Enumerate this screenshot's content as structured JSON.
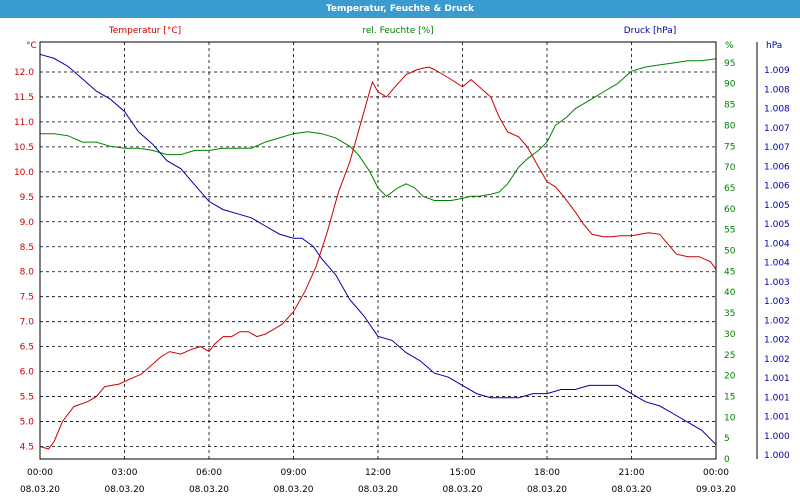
{
  "window": {
    "title": "Temperatur, Feuchte & Druck"
  },
  "colors": {
    "titlebar": "#3a9bd0",
    "temperature": "#cc0000",
    "humidity": "#008000",
    "pressure": "#0000aa",
    "grid": "#000000"
  },
  "legend": {
    "temperature": "Temperatur [°C]",
    "humidity": "rel. Feuchte [%]",
    "pressure": "Druck [hPa]"
  },
  "axes": {
    "left_unit": "°C",
    "right1_unit": "%",
    "right2_unit": "hPa"
  },
  "chart_data": {
    "type": "line",
    "title": "Temperatur, Feuchte & Druck",
    "x_unit": "hours since 08.03.20 00:00",
    "x_ticks": [
      {
        "time": "00:00",
        "date": "08.03.20"
      },
      {
        "time": "03:00",
        "date": "08.03.20"
      },
      {
        "time": "06:00",
        "date": "08.03.20"
      },
      {
        "time": "09:00",
        "date": "08.03.20"
      },
      {
        "time": "12:00",
        "date": "08.03.20"
      },
      {
        "time": "15:00",
        "date": "08.03.20"
      },
      {
        "time": "18:00",
        "date": "08.03.20"
      },
      {
        "time": "21:00",
        "date": "08.03.20"
      },
      {
        "time": "00:00",
        "date": "09.03.20"
      }
    ],
    "xlim": [
      0,
      24
    ],
    "temperature_axis": {
      "ylim": [
        4.25,
        12.6
      ],
      "ticks": [
        "4.5",
        "5.0",
        "5.5",
        "6.0",
        "6.5",
        "7.0",
        "7.5",
        "8.0",
        "8.5",
        "9.0",
        "9.5",
        "10.0",
        "10.5",
        "11.0",
        "11.5",
        "12.0"
      ]
    },
    "humidity_axis": {
      "ylim": [
        0,
        100
      ],
      "ticks": [
        "0",
        "5",
        "10",
        "15",
        "20",
        "25",
        "30",
        "35",
        "40",
        "45",
        "50",
        "55",
        "60",
        "65",
        "70",
        "75",
        "80",
        "85",
        "90",
        "95",
        "%"
      ]
    },
    "pressure_axis": {
      "ylim": [
        0.9995,
        1.0097
      ],
      "ticks": [
        "1.000",
        "1.000",
        "1.001",
        "1.001",
        "1.001",
        "1.002",
        "1.002",
        "1.002",
        "1.003",
        "1.003",
        "1.004",
        "1.004",
        "1.005",
        "1.005",
        "1.006",
        "1.006",
        "1.007",
        "1.007",
        "1.008",
        "1.008",
        "1.009"
      ]
    },
    "grid": true,
    "series": [
      {
        "name": "Temperatur [°C]",
        "axis": "temperature",
        "x": [
          0,
          0.3,
          0.5,
          0.8,
          1.2,
          1.7,
          2.0,
          2.3,
          2.8,
          3.2,
          3.6,
          4.0,
          4.3,
          4.6,
          5.0,
          5.4,
          5.7,
          6.0,
          6.2,
          6.5,
          6.8,
          7.1,
          7.4,
          7.7,
          8.0,
          8.3,
          8.6,
          9.0,
          9.4,
          9.8,
          10.2,
          10.6,
          11.0,
          11.3,
          11.6,
          11.8,
          12.0,
          12.3,
          12.6,
          13.0,
          13.4,
          13.8,
          14.0,
          14.3,
          14.6,
          15.0,
          15.3,
          15.6,
          16.0,
          16.3,
          16.6,
          17.0,
          17.3,
          17.7,
          18.0,
          18.3,
          18.6,
          19.0,
          19.3,
          19.6,
          20.0,
          20.3,
          20.6,
          21.0,
          21.3,
          21.6,
          22.0,
          22.3,
          22.6,
          23.0,
          23.4,
          23.8,
          24.0
        ],
        "values": [
          4.5,
          4.45,
          4.6,
          5.0,
          5.3,
          5.4,
          5.5,
          5.7,
          5.75,
          5.85,
          5.95,
          6.15,
          6.3,
          6.4,
          6.35,
          6.45,
          6.5,
          6.4,
          6.55,
          6.7,
          6.7,
          6.8,
          6.8,
          6.7,
          6.75,
          6.85,
          6.95,
          7.2,
          7.6,
          8.1,
          8.8,
          9.6,
          10.2,
          10.8,
          11.4,
          11.8,
          11.6,
          11.5,
          11.7,
          11.95,
          12.05,
          12.1,
          12.05,
          11.95,
          11.85,
          11.7,
          11.85,
          11.7,
          11.5,
          11.1,
          10.8,
          10.7,
          10.5,
          10.1,
          9.8,
          9.7,
          9.5,
          9.2,
          8.95,
          8.75,
          8.7,
          8.7,
          8.72,
          8.72,
          8.75,
          8.78,
          8.75,
          8.55,
          8.35,
          8.3,
          8.3,
          8.2,
          8.05
        ]
      },
      {
        "name": "rel. Feuchte [%]",
        "axis": "humidity",
        "x": [
          0,
          0.5,
          1.0,
          1.5,
          2.0,
          2.5,
          3.0,
          3.5,
          4.0,
          4.5,
          5.0,
          5.5,
          6.0,
          6.5,
          7.0,
          7.5,
          8.0,
          8.5,
          9.0,
          9.5,
          10.0,
          10.5,
          11.0,
          11.3,
          11.7,
          12.0,
          12.3,
          12.7,
          13.0,
          13.3,
          13.6,
          14.0,
          14.3,
          14.6,
          15.0,
          15.3,
          15.6,
          16.0,
          16.3,
          16.6,
          17.0,
          17.3,
          17.7,
          18.0,
          18.3,
          18.7,
          19.0,
          19.5,
          20.0,
          20.5,
          21.0,
          21.5,
          22.0,
          22.5,
          23.0,
          23.5,
          24.0
        ],
        "values": [
          78,
          78,
          77.5,
          76,
          76,
          75,
          74.5,
          74.5,
          74,
          73,
          73,
          74,
          74,
          74.5,
          74.5,
          74.5,
          76,
          77,
          78,
          78.5,
          78,
          77,
          75,
          73,
          69,
          65,
          63,
          65,
          66,
          65,
          63,
          62,
          62,
          62,
          62.5,
          63,
          63,
          63.5,
          64,
          66,
          70,
          72,
          74,
          76,
          80,
          82,
          84,
          86,
          88,
          90,
          93,
          94,
          94.5,
          95,
          95.5,
          95.5,
          96
        ]
      },
      {
        "name": "Druck [hPa]",
        "axis": "pressure",
        "x": [
          0,
          0.5,
          1.0,
          1.5,
          2.0,
          2.5,
          3.0,
          3.5,
          4.0,
          4.5,
          5.0,
          5.5,
          6.0,
          6.5,
          7.0,
          7.5,
          8.0,
          8.5,
          9.0,
          9.3,
          9.7,
          10.0,
          10.5,
          11.0,
          11.5,
          12.0,
          12.5,
          13.0,
          13.5,
          14.0,
          14.5,
          15.0,
          15.5,
          16.0,
          16.5,
          17.0,
          17.5,
          18.0,
          18.5,
          19.0,
          19.5,
          20.0,
          20.5,
          21.0,
          21.5,
          22.0,
          22.5,
          23.0,
          23.5,
          24.0
        ],
        "values": [
          1.0094,
          1.0093,
          1.0091,
          1.0088,
          1.0085,
          1.0083,
          1.008,
          1.0075,
          1.0072,
          1.0068,
          1.0066,
          1.0062,
          1.0058,
          1.0056,
          1.0055,
          1.0054,
          1.0052,
          1.005,
          1.0049,
          1.0049,
          1.0047,
          1.0044,
          1.004,
          1.0034,
          1.003,
          1.0025,
          1.0024,
          1.0021,
          1.0019,
          1.0016,
          1.0015,
          1.0013,
          1.0011,
          1.001,
          1.001,
          1.001,
          1.0011,
          1.0011,
          1.0012,
          1.0012,
          1.0013,
          1.0013,
          1.0013,
          1.0011,
          1.0009,
          1.0008,
          1.0006,
          1.0004,
          1.0002,
          0.99985
        ]
      }
    ]
  }
}
